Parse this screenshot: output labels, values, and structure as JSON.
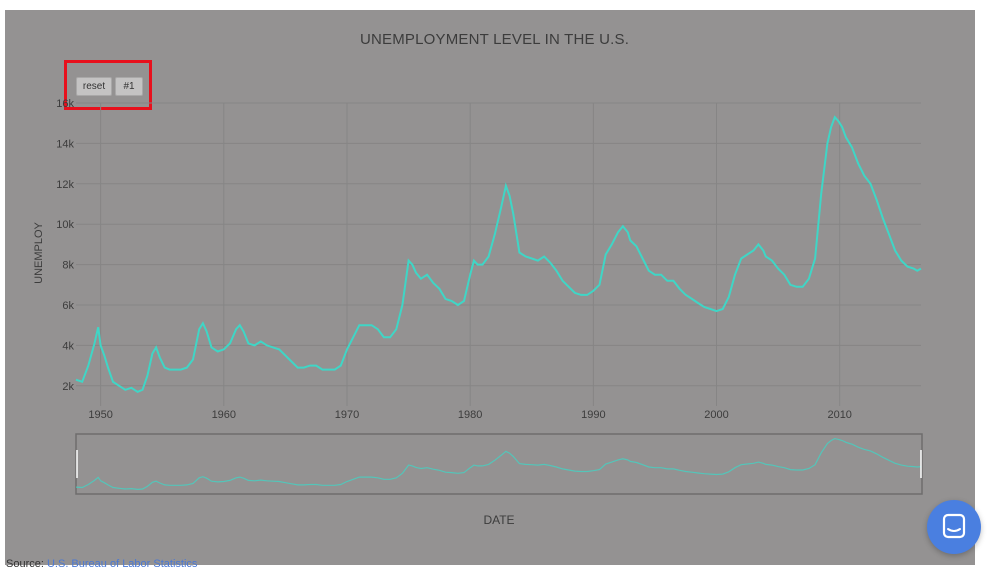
{
  "chart_data": {
    "type": "line",
    "title": "UNEMPLOYMENT LEVEL IN THE U.S.",
    "xlabel": "DATE",
    "ylabel": "UNEMPLOY",
    "x_ticks": [
      "1950",
      "1960",
      "1970",
      "1980",
      "1990",
      "2000",
      "2010"
    ],
    "y_ticks": [
      "2k",
      "4k",
      "6k",
      "8k",
      "10k",
      "12k",
      "14k",
      "16k"
    ],
    "xlim": [
      1948,
      2016.6
    ],
    "ylim": [
      1000,
      16000
    ],
    "grid": true,
    "line_color": "#3fd6c6",
    "series": [
      {
        "x": [
          1948,
          1948.5,
          1949,
          1949.5,
          1949.8,
          1950.0,
          1950.3,
          1950.6,
          1951,
          1951.5,
          1952,
          1952.5,
          1953,
          1953.4,
          1953.8,
          1954.2,
          1954.5,
          1954.8,
          1955.2,
          1955.6,
          1956,
          1956.5,
          1957,
          1957.5,
          1958,
          1958.3,
          1958.6,
          1959,
          1959.5,
          1960,
          1960.5,
          1961,
          1961.3,
          1961.6,
          1962,
          1962.5,
          1963,
          1963.5,
          1964,
          1964.5,
          1965,
          1965.5,
          1966,
          1966.5,
          1967,
          1967.5,
          1968,
          1968.5,
          1969,
          1969.5,
          1970,
          1970.5,
          1971,
          1971.5,
          1972,
          1972.5,
          1973,
          1973.5,
          1974,
          1974.5,
          1975,
          1975.3,
          1975.6,
          1976,
          1976.5,
          1977,
          1977.5,
          1978,
          1978.5,
          1979,
          1979.5,
          1980,
          1980.3,
          1980.6,
          1981,
          1981.5,
          1982,
          1982.5,
          1982.9,
          1983.2,
          1983.5,
          1984,
          1984.5,
          1985,
          1985.5,
          1986,
          1986.5,
          1987,
          1987.5,
          1988,
          1988.5,
          1989,
          1989.5,
          1990,
          1990.5,
          1991,
          1991.5,
          1992,
          1992.4,
          1992.8,
          1993,
          1993.5,
          1994,
          1994.5,
          1995,
          1995.5,
          1996,
          1996.5,
          1997,
          1997.5,
          1998,
          1998.5,
          1999,
          1999.5,
          2000,
          2000.5,
          2001,
          2001.5,
          2002,
          2002.5,
          2003,
          2003.4,
          2003.8,
          2004,
          2004.5,
          2005,
          2005.5,
          2006,
          2006.5,
          2007,
          2007.5,
          2008,
          2008.5,
          2009,
          2009.3,
          2009.6,
          2009.9,
          2010.2,
          2010.5,
          2010.8,
          2011,
          2011.5,
          2012,
          2012.5,
          2013,
          2013.5,
          2014,
          2014.5,
          2015,
          2015.5,
          2016,
          2016.3,
          2016.6
        ],
        "y": [
          2300,
          2200,
          3000,
          4100,
          4900,
          4000,
          3500,
          2900,
          2200,
          2000,
          1800,
          1900,
          1700,
          1800,
          2500,
          3600,
          3900,
          3400,
          2900,
          2800,
          2800,
          2800,
          2900,
          3300,
          4800,
          5100,
          4700,
          3900,
          3700,
          3800,
          4100,
          4800,
          5000,
          4700,
          4100,
          4000,
          4200,
          4000,
          3900,
          3800,
          3500,
          3200,
          2900,
          2900,
          3000,
          3000,
          2800,
          2800,
          2800,
          3000,
          3800,
          4400,
          5000,
          5000,
          5000,
          4800,
          4400,
          4400,
          4800,
          6000,
          8200,
          8000,
          7600,
          7300,
          7500,
          7100,
          6800,
          6300,
          6200,
          6000,
          6200,
          7500,
          8200,
          8000,
          8000,
          8400,
          9500,
          10800,
          11900,
          11400,
          10500,
          8600,
          8400,
          8300,
          8200,
          8400,
          8100,
          7700,
          7200,
          6900,
          6600,
          6500,
          6500,
          6700,
          7000,
          8500,
          9000,
          9600,
          9900,
          9600,
          9200,
          8900,
          8300,
          7700,
          7500,
          7500,
          7200,
          7200,
          6800,
          6500,
          6300,
          6100,
          5900,
          5800,
          5700,
          5800,
          6400,
          7500,
          8300,
          8500,
          8700,
          9000,
          8700,
          8400,
          8200,
          7800,
          7500,
          7000,
          6900,
          6900,
          7300,
          8300,
          11500,
          14000,
          14800,
          15300,
          15100,
          14800,
          14300,
          14000,
          13800,
          13000,
          12400,
          12000,
          11200,
          10300,
          9500,
          8700,
          8200,
          7900,
          7800,
          7700,
          7800
        ]
      }
    ]
  },
  "controls": {
    "reset_label": "reset",
    "series_label": "#1"
  },
  "source": {
    "label": "Source:",
    "link_text": "U.S. Bureau of Labor Statistics"
  },
  "chat": {
    "icon": "chat-icon"
  }
}
